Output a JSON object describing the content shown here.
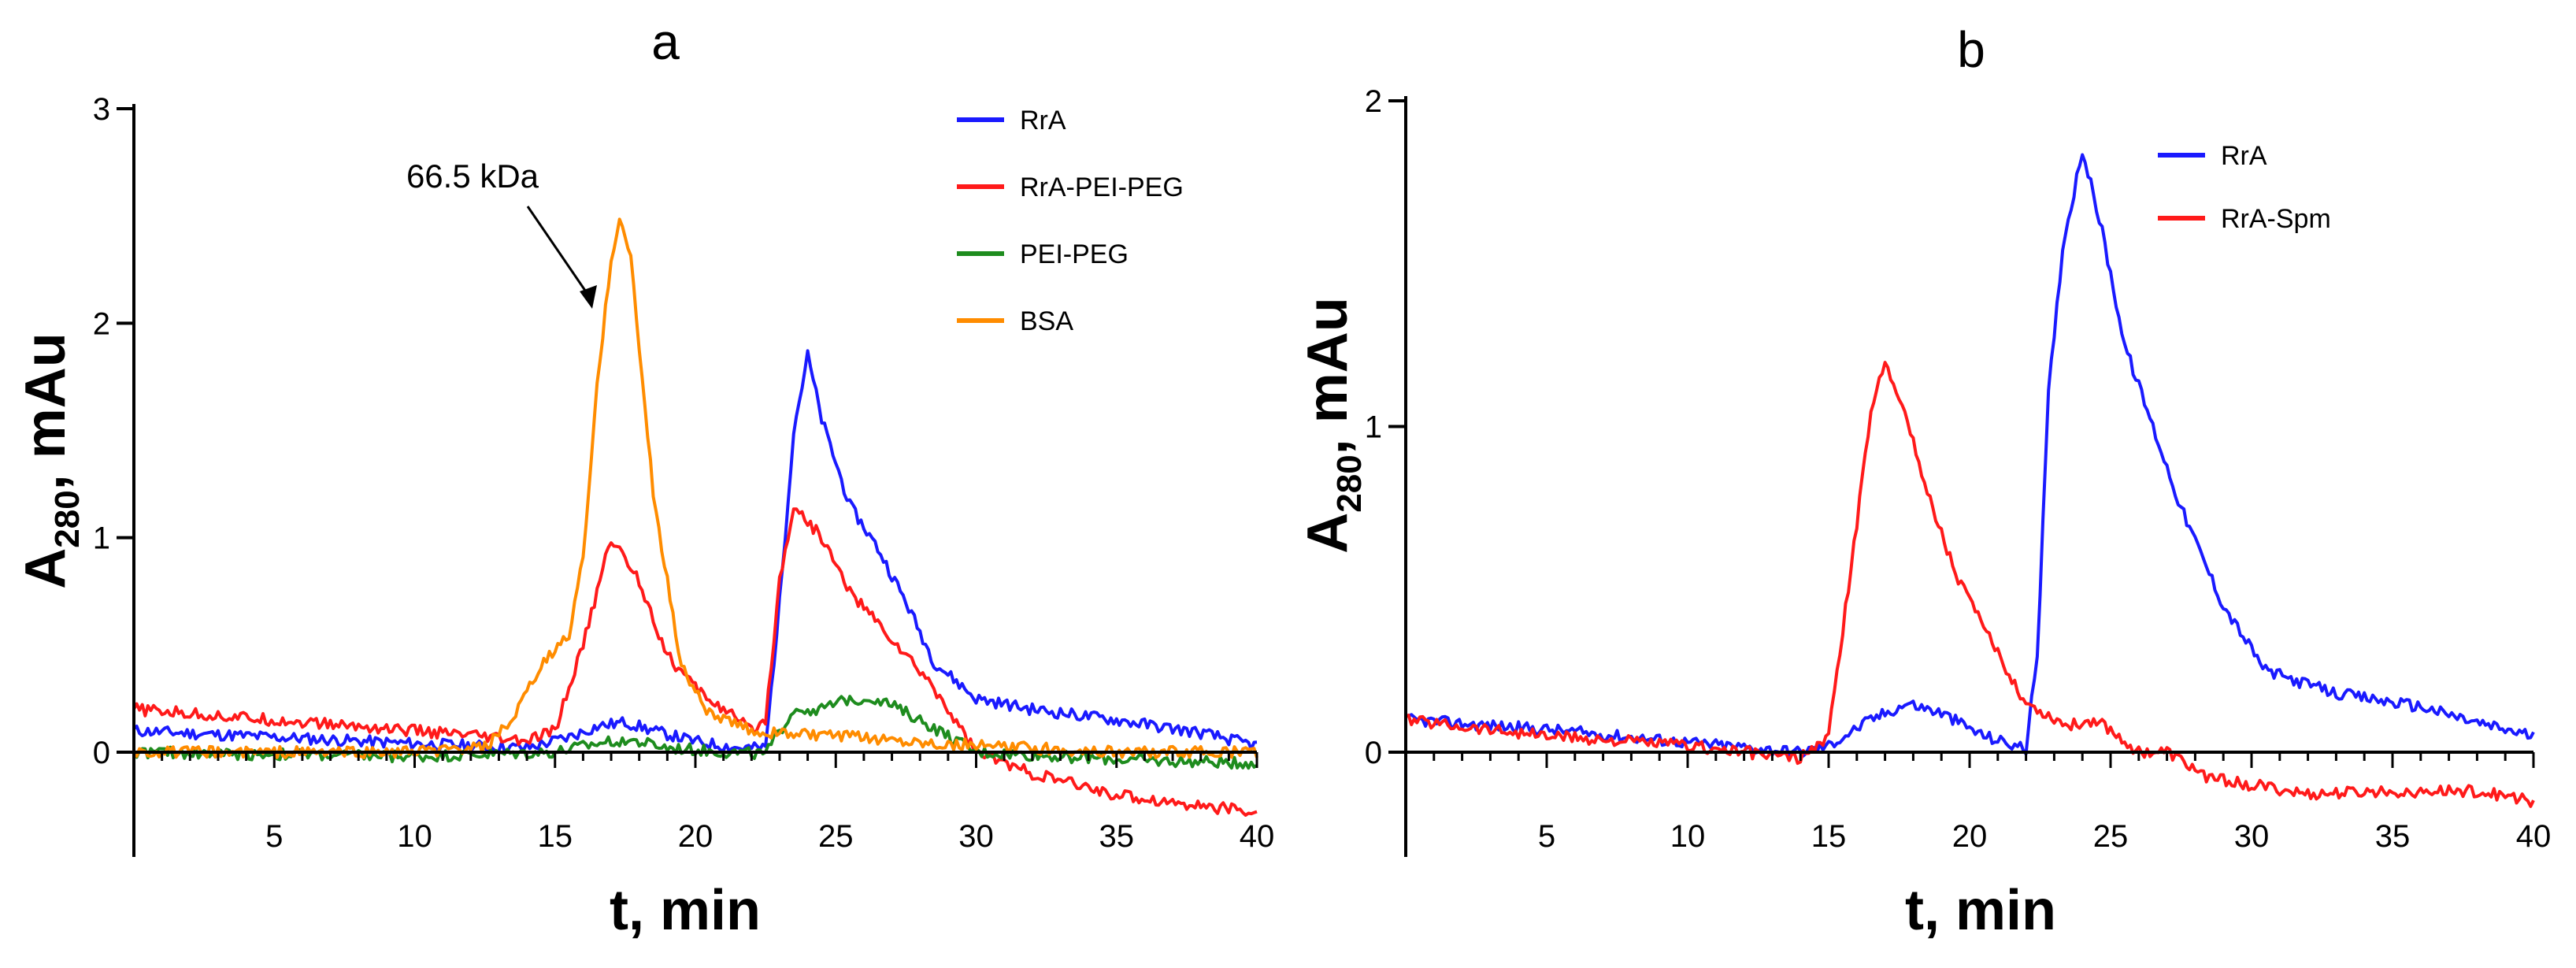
{
  "chart_data": [
    {
      "type": "line",
      "panel": "a",
      "title": "a",
      "xlabel": "t, min",
      "ylabel_main": "A",
      "ylabel_sub": "280",
      "ylabel_rest": ", mAu",
      "xlim": [
        0,
        40
      ],
      "ylim": [
        -0.5,
        3
      ],
      "xticks": [
        5,
        10,
        15,
        20,
        25,
        30,
        35,
        40
      ],
      "yticks": [
        0,
        1,
        2,
        3
      ],
      "legend_position": "top-right",
      "annotation": {
        "text": "66.5 kDa",
        "points_to": [
          17.2,
          2.05
        ]
      },
      "series": [
        {
          "name": "RrA",
          "color": "#1a1aff",
          "x": [
            0,
            5,
            10,
            14,
            15.5,
            16.5,
            17.5,
            18.5,
            20,
            21.5,
            22.5,
            23,
            23.5,
            24,
            24.5,
            25.5,
            26.5,
            27.5,
            28.5,
            30,
            32,
            35,
            38,
            40
          ],
          "y": [
            0.1,
            0.07,
            0.04,
            0.02,
            0.07,
            0.12,
            0.14,
            0.1,
            0.05,
            0.02,
            0.02,
            0.7,
            1.5,
            1.85,
            1.55,
            1.15,
            0.95,
            0.7,
            0.42,
            0.25,
            0.2,
            0.15,
            0.09,
            0.03
          ]
        },
        {
          "name": "RrA-PEI-PEG",
          "color": "#ff1a1a",
          "x": [
            0,
            5,
            10,
            14,
            15,
            16,
            17,
            18,
            19,
            20,
            21,
            22,
            22.5,
            23,
            23.5,
            24.5,
            25.5,
            26.5,
            27.5,
            28.5,
            30,
            32,
            35,
            38,
            40
          ],
          "y": [
            0.2,
            0.15,
            0.1,
            0.05,
            0.1,
            0.5,
            1.0,
            0.8,
            0.45,
            0.3,
            0.2,
            0.1,
            0.15,
            0.8,
            1.15,
            1.0,
            0.75,
            0.6,
            0.45,
            0.3,
            0.0,
            -0.1,
            -0.2,
            -0.25,
            -0.28
          ]
        },
        {
          "name": "PEI-PEG",
          "color": "#1e8c1e",
          "x": [
            0,
            5,
            10,
            15,
            16.5,
            17.5,
            19,
            21,
            22.5,
            23.5,
            24.5,
            25.5,
            26.5,
            28,
            30,
            33,
            36,
            40
          ],
          "y": [
            0,
            -0.01,
            -0.02,
            0.0,
            0.04,
            0.06,
            0.02,
            0.0,
            -0.01,
            0.2,
            0.2,
            0.25,
            0.25,
            0.15,
            0.0,
            -0.02,
            -0.04,
            -0.05
          ]
        },
        {
          "name": "BSA",
          "color": "#ff8c00",
          "x": [
            0,
            5,
            10,
            12.5,
            13.5,
            14.5,
            15.5,
            16,
            16.5,
            17,
            17.3,
            17.7,
            18.5,
            19.5,
            20.5,
            22,
            24,
            27,
            30,
            35,
            40
          ],
          "y": [
            0.0,
            0.0,
            0.0,
            0.02,
            0.15,
            0.4,
            0.55,
            0.9,
            1.7,
            2.3,
            2.5,
            2.3,
            1.2,
            0.4,
            0.18,
            0.1,
            0.08,
            0.06,
            0.03,
            0.0,
            0.0
          ]
        }
      ]
    },
    {
      "type": "line",
      "panel": "b",
      "title": "b",
      "xlabel": "t, min",
      "ylabel_main": "A",
      "ylabel_sub": "280",
      "ylabel_rest": ", mAu",
      "xlim": [
        0,
        40
      ],
      "ylim": [
        -0.3,
        2
      ],
      "xticks": [
        5,
        10,
        15,
        20,
        25,
        30,
        35,
        40
      ],
      "yticks": [
        0,
        1,
        2
      ],
      "legend_position": "top-right",
      "series": [
        {
          "name": "RrA",
          "color": "#1a1aff",
          "x": [
            0,
            5,
            10,
            14,
            15,
            16.5,
            17.8,
            19,
            20.5,
            22,
            22.4,
            22.8,
            23.3,
            24,
            24.7,
            25.5,
            26.5,
            27.5,
            29,
            30.5,
            33,
            36,
            38,
            40
          ],
          "y": [
            0.1,
            0.07,
            0.03,
            0.0,
            0.02,
            0.1,
            0.15,
            0.12,
            0.05,
            0.01,
            0.3,
            1.1,
            1.55,
            1.85,
            1.6,
            1.25,
            1.0,
            0.75,
            0.45,
            0.25,
            0.18,
            0.14,
            0.09,
            0.05
          ]
        },
        {
          "name": "RrA-Spm",
          "color": "#ff1a1a",
          "x": [
            0,
            5,
            10,
            14,
            15,
            16,
            16.5,
            17,
            17.5,
            18.5,
            19.5,
            20.5,
            22,
            23.5,
            24.5,
            26,
            27,
            28.5,
            30,
            32,
            35,
            38,
            40
          ],
          "y": [
            0.1,
            0.05,
            0.02,
            -0.02,
            0.05,
            0.7,
            1.05,
            1.2,
            1.1,
            0.8,
            0.55,
            0.38,
            0.15,
            0.08,
            0.1,
            0.0,
            0.0,
            -0.08,
            -0.1,
            -0.13,
            -0.12,
            -0.12,
            -0.15
          ]
        }
      ]
    }
  ]
}
